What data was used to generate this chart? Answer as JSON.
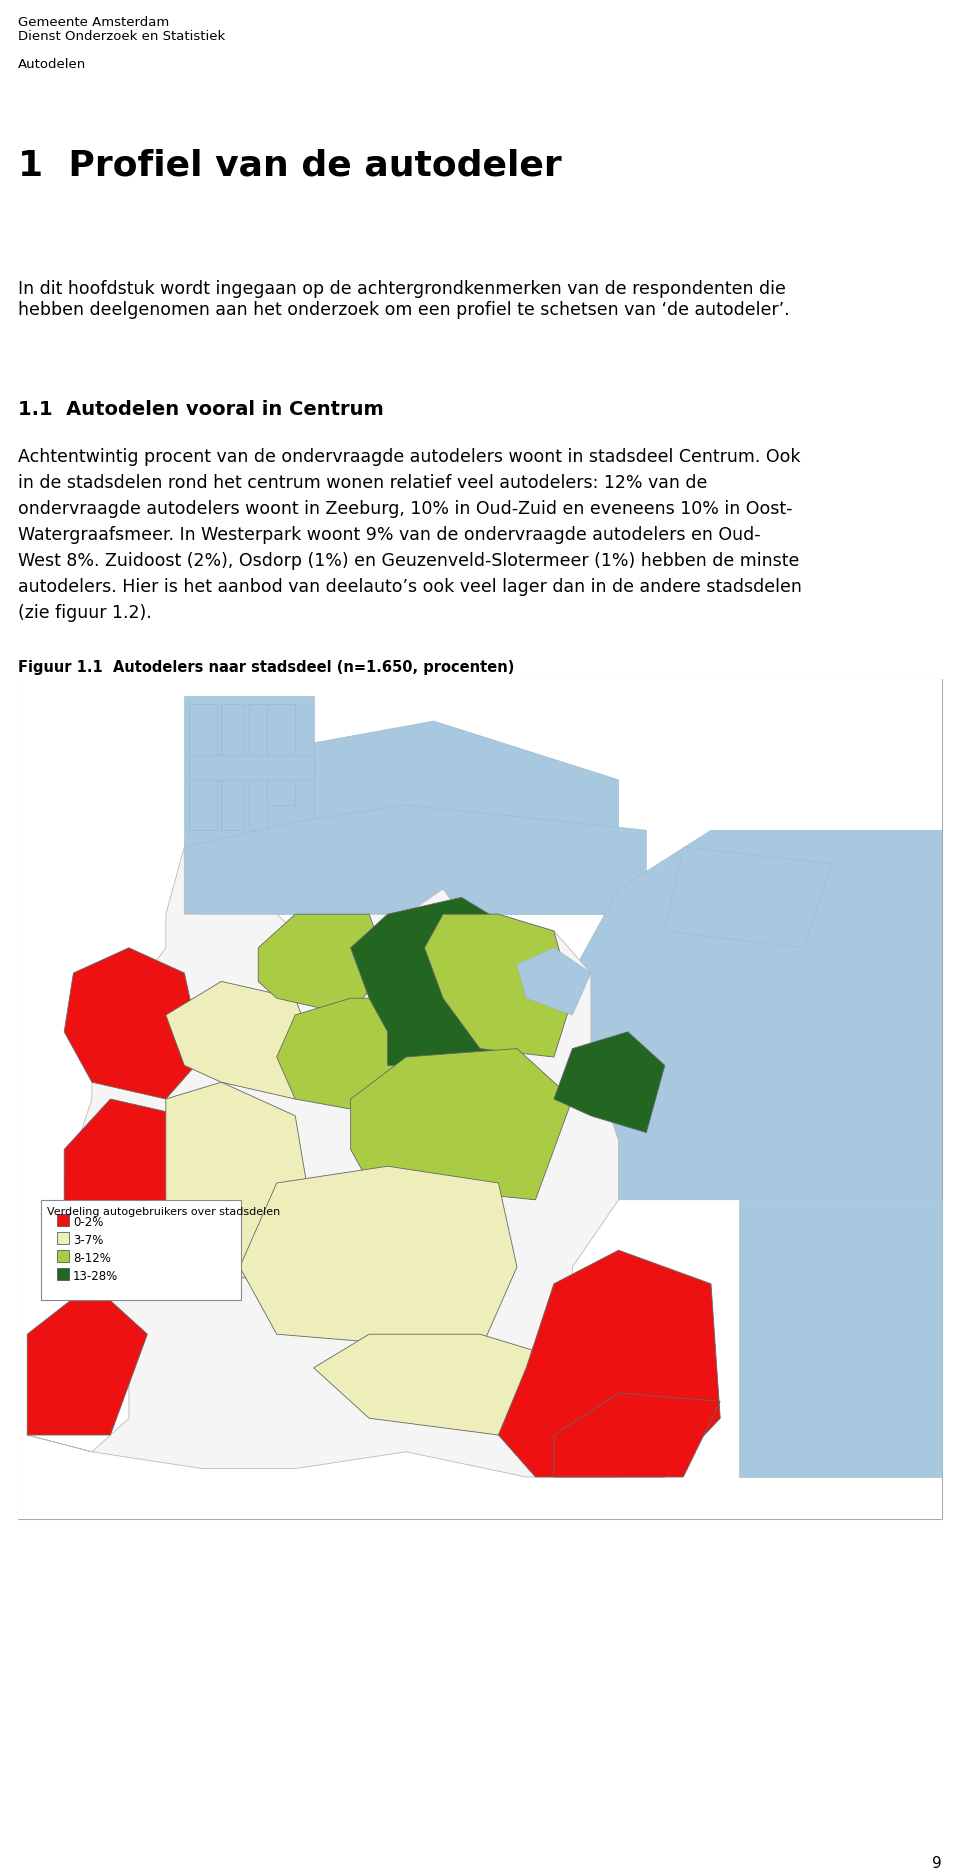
{
  "header_line1": "Gemeente Amsterdam",
  "header_line2": "Dienst Onderzoek en Statistiek",
  "header_line3": "Autodelen",
  "chapter_title": "1  Profiel van de autodeler",
  "intro_text": "In dit hoofdstuk wordt ingegaan op de achtergrondkenmerken van de respondenten die\nhebben deelgenomen aan het onderzoek om een profiel te schetsen van ‘de autodeler’.",
  "section_title": "1.1  Autodelen vooral in Centrum",
  "body_line1": "Achtentwintig procent van de ondervraagde autodelers woont in stadsdeel Centrum. Ook",
  "body_line2": "in de stadsdelen rond het centrum wonen relatief veel autodelers: 12% van de",
  "body_line3": "ondervraagde autodelers woont in Zeeburg, 10% in Oud-Zuid en eveneens 10% in Oost-",
  "body_line4": "Watergraafsmeer. In Westerpark woont 9% van de ondervraagde autodelers en Oud-",
  "body_line5": "West 8%. Zuidoost (2%), Osdorp (1%) en Geuzenveld-Slotermeer (1%) hebben de minste",
  "body_line6": "autodelers. Hier is het aanbod van deelauto’s ook veel lager dan in de andere stadsdelen",
  "body_line7": "(zie figuur 1.2).",
  "figure_caption": "Figuur 1.1  Autodelers naar stadsdeel (n=1.650, procenten)",
  "legend_title": "Verdeling autogebruikers over stadsdelen",
  "legend_items": [
    {
      "label": "0-2%",
      "color": "#EE1111"
    },
    {
      "label": "3-7%",
      "color": "#EEEEBB"
    },
    {
      "label": "8-12%",
      "color": "#AACC44"
    },
    {
      "label": "13-28%",
      "color": "#226622"
    }
  ],
  "page_number": "9",
  "bg_color": "#FFFFFF",
  "water_color": "#A8C8E0",
  "outline_color": "#CCCCCC",
  "land_bg": "#F0F0F0"
}
